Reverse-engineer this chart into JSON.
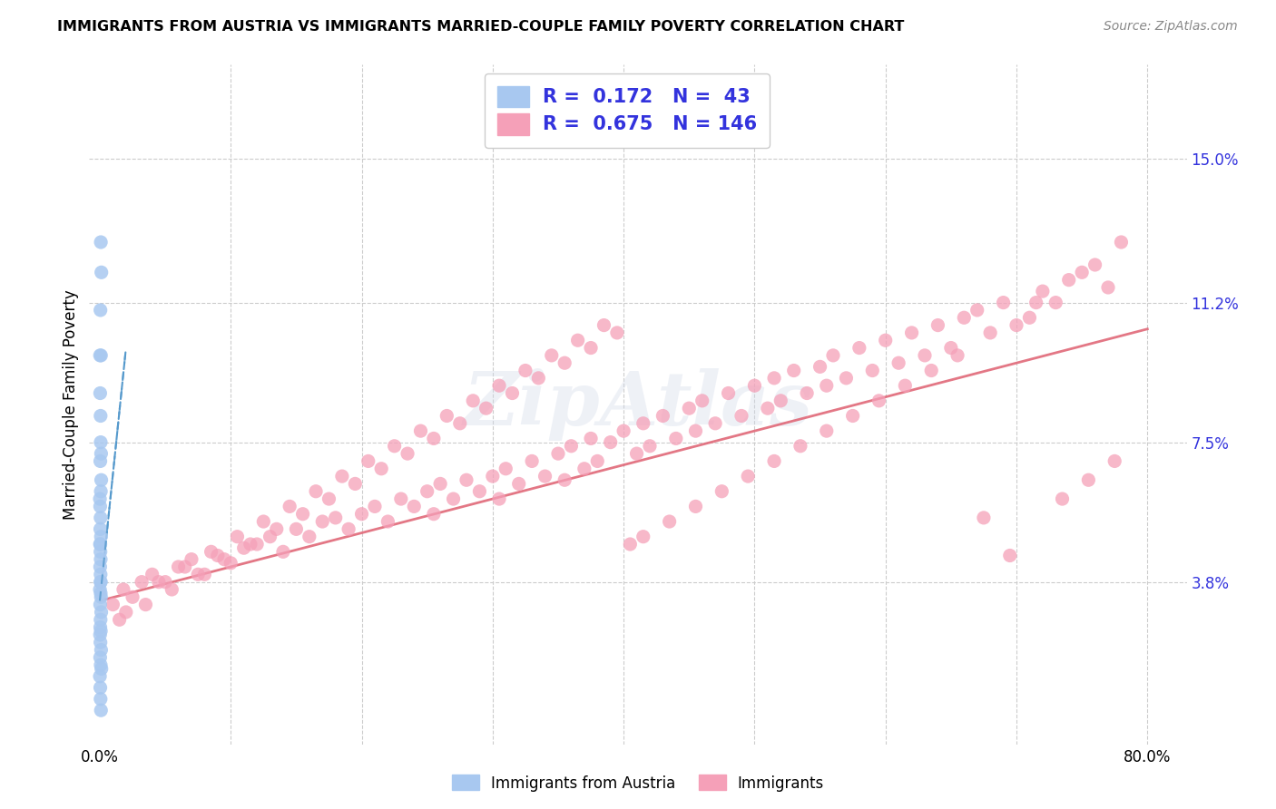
{
  "title": "IMMIGRANTS FROM AUSTRIA VS IMMIGRANTS MARRIED-COUPLE FAMILY POVERTY CORRELATION CHART",
  "source": "Source: ZipAtlas.com",
  "ylabel": "Married-Couple Family Poverty",
  "legend_blue_r": "0.172",
  "legend_blue_n": "43",
  "legend_pink_r": "0.675",
  "legend_pink_n": "146",
  "blue_color": "#a8c8f0",
  "blue_line_color": "#5599cc",
  "pink_color": "#f5a0b8",
  "pink_line_color": "#e06878",
  "label_color": "#3333dd",
  "watermark": "ZipAtlas",
  "x_min": 0.0,
  "x_max": 0.8,
  "y_min": 0.0,
  "y_max": 0.165,
  "y_tick_vals_right": [
    0.038,
    0.075,
    0.112,
    0.15
  ],
  "y_tick_labels_right": [
    "3.8%",
    "7.5%",
    "11.2%",
    "15.0%"
  ],
  "x_tick_positions": [
    0.0,
    0.1,
    0.2,
    0.3,
    0.4,
    0.5,
    0.6,
    0.7,
    0.8
  ],
  "x_tick_labels": [
    "0.0%",
    "",
    "",
    "",
    "",
    "",
    "",
    "",
    "80.0%"
  ],
  "blue_x": [
    0.0008,
    0.0012,
    0.0005,
    0.0009,
    0.0003,
    0.0006,
    0.0002,
    0.0007,
    0.0004,
    0.001,
    0.0011,
    0.0001,
    0.0003,
    0.0008,
    0.0006,
    0.0004,
    0.0009,
    0.0002,
    0.0005,
    0.0007,
    0.0003,
    0.0006,
    0.0004,
    0.0008,
    0.0005,
    0.0001,
    0.0007,
    0.0009,
    0.0003,
    0.0011,
    0.0006,
    0.0004,
    0.0008,
    0.0002,
    0.0005,
    0.001,
    0.0003,
    0.0007,
    0.0012,
    0.0001,
    0.0004,
    0.0006,
    0.0009
  ],
  "blue_y": [
    0.128,
    0.12,
    0.11,
    0.098,
    0.088,
    0.082,
    0.098,
    0.075,
    0.07,
    0.072,
    0.065,
    0.06,
    0.058,
    0.062,
    0.055,
    0.052,
    0.05,
    0.048,
    0.046,
    0.044,
    0.042,
    0.04,
    0.048,
    0.038,
    0.038,
    0.036,
    0.035,
    0.034,
    0.032,
    0.03,
    0.028,
    0.026,
    0.025,
    0.024,
    0.022,
    0.02,
    0.018,
    0.016,
    0.015,
    0.013,
    0.01,
    0.007,
    0.004
  ],
  "blue_line_x0": 0.0,
  "blue_line_x1": 0.02,
  "blue_line_y0": 0.033,
  "blue_line_y1": 0.1,
  "pink_line_x0": 0.0,
  "pink_line_x1": 0.8,
  "pink_line_y0": 0.033,
  "pink_line_y1": 0.105,
  "pink_x": [
    0.01,
    0.018,
    0.025,
    0.032,
    0.04,
    0.05,
    0.06,
    0.07,
    0.08,
    0.09,
    0.1,
    0.11,
    0.12,
    0.13,
    0.14,
    0.15,
    0.16,
    0.17,
    0.18,
    0.19,
    0.2,
    0.21,
    0.22,
    0.23,
    0.24,
    0.25,
    0.255,
    0.26,
    0.27,
    0.28,
    0.29,
    0.3,
    0.305,
    0.31,
    0.32,
    0.33,
    0.34,
    0.35,
    0.355,
    0.36,
    0.37,
    0.375,
    0.38,
    0.39,
    0.4,
    0.41,
    0.415,
    0.42,
    0.43,
    0.44,
    0.45,
    0.455,
    0.46,
    0.47,
    0.48,
    0.49,
    0.5,
    0.51,
    0.515,
    0.52,
    0.53,
    0.54,
    0.55,
    0.555,
    0.56,
    0.57,
    0.58,
    0.59,
    0.6,
    0.61,
    0.62,
    0.63,
    0.64,
    0.65,
    0.66,
    0.67,
    0.68,
    0.69,
    0.7,
    0.71,
    0.72,
    0.73,
    0.74,
    0.75,
    0.76,
    0.77,
    0.78,
    0.015,
    0.035,
    0.055,
    0.075,
    0.095,
    0.115,
    0.135,
    0.155,
    0.175,
    0.195,
    0.215,
    0.235,
    0.255,
    0.275,
    0.295,
    0.315,
    0.335,
    0.355,
    0.375,
    0.395,
    0.415,
    0.435,
    0.455,
    0.475,
    0.495,
    0.515,
    0.535,
    0.555,
    0.575,
    0.595,
    0.615,
    0.635,
    0.655,
    0.675,
    0.695,
    0.715,
    0.735,
    0.755,
    0.775,
    0.02,
    0.045,
    0.065,
    0.085,
    0.105,
    0.125,
    0.145,
    0.165,
    0.185,
    0.205,
    0.225,
    0.245,
    0.265,
    0.285,
    0.305,
    0.325,
    0.345,
    0.365,
    0.385,
    0.405
  ],
  "pink_y": [
    0.032,
    0.036,
    0.034,
    0.038,
    0.04,
    0.038,
    0.042,
    0.044,
    0.04,
    0.045,
    0.043,
    0.047,
    0.048,
    0.05,
    0.046,
    0.052,
    0.05,
    0.054,
    0.055,
    0.052,
    0.056,
    0.058,
    0.054,
    0.06,
    0.058,
    0.062,
    0.056,
    0.064,
    0.06,
    0.065,
    0.062,
    0.066,
    0.06,
    0.068,
    0.064,
    0.07,
    0.066,
    0.072,
    0.065,
    0.074,
    0.068,
    0.076,
    0.07,
    0.075,
    0.078,
    0.072,
    0.08,
    0.074,
    0.082,
    0.076,
    0.084,
    0.078,
    0.086,
    0.08,
    0.088,
    0.082,
    0.09,
    0.084,
    0.092,
    0.086,
    0.094,
    0.088,
    0.095,
    0.09,
    0.098,
    0.092,
    0.1,
    0.094,
    0.102,
    0.096,
    0.104,
    0.098,
    0.106,
    0.1,
    0.108,
    0.11,
    0.104,
    0.112,
    0.106,
    0.108,
    0.115,
    0.112,
    0.118,
    0.12,
    0.122,
    0.116,
    0.128,
    0.028,
    0.032,
    0.036,
    0.04,
    0.044,
    0.048,
    0.052,
    0.056,
    0.06,
    0.064,
    0.068,
    0.072,
    0.076,
    0.08,
    0.084,
    0.088,
    0.092,
    0.096,
    0.1,
    0.104,
    0.05,
    0.054,
    0.058,
    0.062,
    0.066,
    0.07,
    0.074,
    0.078,
    0.082,
    0.086,
    0.09,
    0.094,
    0.098,
    0.055,
    0.045,
    0.112,
    0.06,
    0.065,
    0.07,
    0.03,
    0.038,
    0.042,
    0.046,
    0.05,
    0.054,
    0.058,
    0.062,
    0.066,
    0.07,
    0.074,
    0.078,
    0.082,
    0.086,
    0.09,
    0.094,
    0.098,
    0.102,
    0.106,
    0.048
  ]
}
